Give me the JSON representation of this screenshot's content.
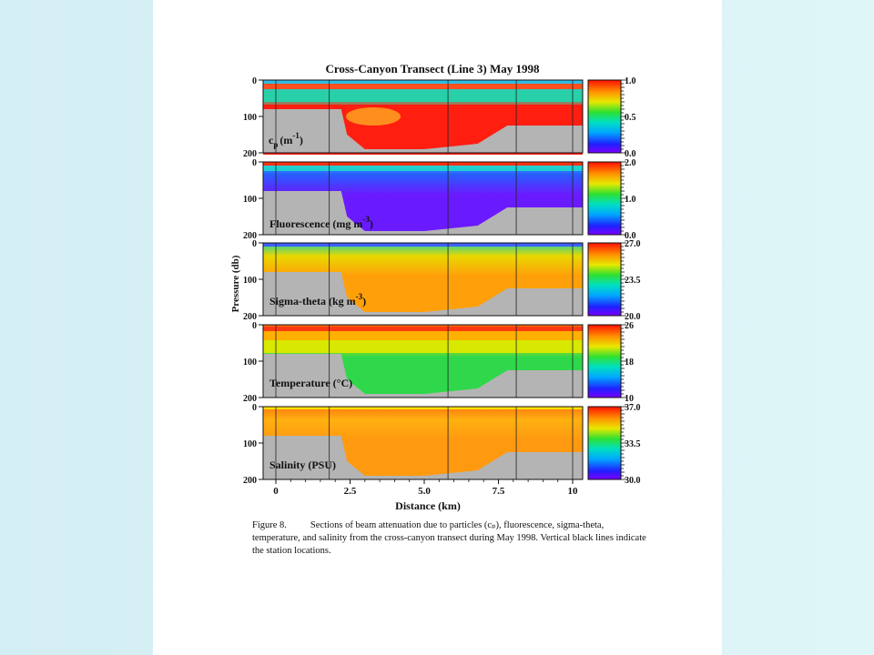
{
  "figure": {
    "title": "Cross-Canyon Transect (Line 3)  May 1998",
    "y_axis_label": "Pressure (db)",
    "x_axis_label": "Distance (km)",
    "x_ticks": [
      "0",
      "2.5",
      "5.0",
      "7.5",
      "10"
    ],
    "caption_label": "Figure 8.",
    "caption_text": "Sections of beam attenuation due to particles (cₚ), fluorescence, sigma-theta, temperature, and salinity from the cross-canyon  transect during May 1998. Vertical black lines indicate the station locations.",
    "caption_subscript_p": "p"
  },
  "chart_data": [
    {
      "type": "heatmap",
      "label_base": "c",
      "label_sub": "p",
      "label_unit": "(m",
      "label_exp": "-1",
      "label_close": ")",
      "y_ticks": [
        "0",
        "100",
        "200"
      ],
      "colorbar_ticks": [
        "1.0",
        "0.5",
        "0.0"
      ],
      "ylim": [
        200,
        0
      ],
      "xlim": [
        0,
        10
      ],
      "colors": {
        "surface": "#30b8f0",
        "upper": "#2fd0a0",
        "deep": "#ff2a1a",
        "mid": "#ff6a1a"
      }
    },
    {
      "type": "heatmap",
      "label": "Fluorescence (mg m",
      "label_exp": "-3",
      "label_close": ")",
      "y_ticks": [
        "0",
        "100",
        "200"
      ],
      "colorbar_ticks": [
        "2.0",
        "1.0",
        "0.0"
      ],
      "ylim": [
        200,
        0
      ],
      "xlim": [
        0,
        10
      ],
      "colors": {
        "surface": "#24b0ff",
        "upper": "#2a5cff",
        "deep": "#6a1aff"
      }
    },
    {
      "type": "heatmap",
      "label": "Sigma-theta (kg m",
      "label_exp": "-3",
      "label_close": ")",
      "y_ticks": [
        "0",
        "100",
        "200"
      ],
      "colorbar_ticks": [
        "27.0",
        "23.5",
        "20.0"
      ],
      "ylim": [
        200,
        0
      ],
      "xlim": [
        0,
        10
      ],
      "colors": {
        "surface": "#24d2a0",
        "upper": "#e8d800",
        "deep": "#ffa00a"
      }
    },
    {
      "type": "heatmap",
      "label": "Temperature (°C)",
      "y_ticks": [
        "0",
        "100",
        "200"
      ],
      "colorbar_ticks": [
        "26",
        "18",
        "10"
      ],
      "ylim": [
        200,
        0
      ],
      "xlim": [
        0,
        10
      ],
      "colors": {
        "surface": "#ff6010",
        "upper": "#ffe000",
        "deep": "#2fd84a"
      }
    },
    {
      "type": "heatmap",
      "label": "Salinity (PSU)",
      "y_ticks": [
        "0",
        "100",
        "200"
      ],
      "colorbar_ticks": [
        "37.0",
        "33.5",
        "30.0"
      ],
      "ylim": [
        200,
        0
      ],
      "xlim": [
        0,
        10
      ],
      "colors": {
        "surface": "#ff7a10",
        "upper": "#ffb010",
        "deep": "#ff9a10"
      }
    }
  ]
}
